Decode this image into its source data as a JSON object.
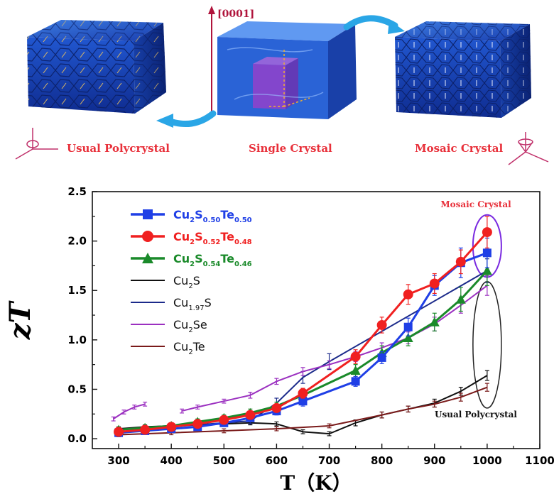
{
  "illustration": {
    "direction_label": "[0001]",
    "label_left": "Usual Polycrystal",
    "label_center": "Single Crystal",
    "label_right": "Mosaic Crystal",
    "label_color": "#e8303a",
    "crystal_color": "#1e4fc2",
    "arrow_color": "#2aa6e6"
  },
  "chart_data": {
    "type": "line",
    "xlabel": "T（K）",
    "ylabel": "zT",
    "xlim": [
      250,
      1100
    ],
    "ylim": [
      -0.1,
      2.5
    ],
    "xticks": [
      "300",
      "400",
      "500",
      "600",
      "700",
      "800",
      "900",
      "1000",
      "1100"
    ],
    "yticks": [
      "0.0",
      "0.5",
      "1.0",
      "1.5",
      "2.0",
      "2.5"
    ],
    "legend_position": "top-left",
    "annotations": [
      "Mosaic Crystal",
      "Usual Polycrystal"
    ],
    "series": [
      {
        "name": "Cu2S0.50Te0.50",
        "legend": {
          "base": "Cu",
          "s1": "2",
          "mid": "S",
          "s2": "0.50",
          "tail": "Te",
          "s3": "0.50"
        },
        "color": "#1f3fe6",
        "marker": "square",
        "bold": true,
        "x": [
          300,
          350,
          400,
          450,
          500,
          550,
          600,
          650,
          750,
          800,
          850,
          900,
          950,
          1000
        ],
        "y": [
          0.06,
          0.08,
          0.1,
          0.12,
          0.16,
          0.21,
          0.28,
          0.38,
          0.58,
          0.82,
          1.13,
          1.55,
          1.78,
          1.88
        ],
        "err": [
          0.02,
          0.02,
          0.02,
          0.03,
          0.03,
          0.03,
          0.04,
          0.05,
          0.05,
          0.06,
          0.09,
          0.1,
          0.15,
          0.15
        ]
      },
      {
        "name": "Cu2S0.52Te0.48",
        "legend": {
          "base": "Cu",
          "s1": "2",
          "mid": "S",
          "s2": "0.52",
          "tail": "Te",
          "s3": "0.48"
        },
        "color": "#f02020",
        "marker": "circle",
        "bold": true,
        "x": [
          300,
          350,
          400,
          450,
          500,
          550,
          600,
          650,
          750,
          800,
          850,
          900,
          950,
          1000
        ],
        "y": [
          0.07,
          0.09,
          0.12,
          0.15,
          0.19,
          0.24,
          0.31,
          0.46,
          0.83,
          1.15,
          1.46,
          1.57,
          1.79,
          2.09
        ],
        "err": [
          0.02,
          0.02,
          0.03,
          0.03,
          0.03,
          0.04,
          0.04,
          0.05,
          0.07,
          0.08,
          0.1,
          0.1,
          0.12,
          0.16
        ]
      },
      {
        "name": "Cu2S0.54Te0.46",
        "legend": {
          "base": "Cu",
          "s1": "2",
          "mid": "S",
          "s2": "0.54",
          "tail": "Te",
          "s3": "0.46"
        },
        "color": "#1a8a2a",
        "marker": "triangle",
        "bold": true,
        "x": [
          300,
          350,
          400,
          450,
          500,
          550,
          600,
          650,
          750,
          800,
          850,
          900,
          950,
          1000
        ],
        "y": [
          0.09,
          0.11,
          0.13,
          0.17,
          0.21,
          0.26,
          0.33,
          0.44,
          0.69,
          0.87,
          1.02,
          1.18,
          1.41,
          1.7
        ],
        "err": [
          0.02,
          0.02,
          0.03,
          0.03,
          0.03,
          0.04,
          0.04,
          0.05,
          0.06,
          0.07,
          0.08,
          0.09,
          0.12,
          0.15
        ]
      },
      {
        "name": "Cu2S",
        "legend": {
          "base": "Cu",
          "s1": "2",
          "mid": "S",
          "s2": "",
          "tail": "",
          "s3": ""
        },
        "color": "#111111",
        "marker": "none",
        "bold": false,
        "x": [
          300,
          350,
          400,
          450,
          500,
          550,
          600,
          650,
          700,
          750,
          800,
          850,
          900,
          950,
          1000
        ],
        "y": [
          0.1,
          0.12,
          0.13,
          0.14,
          0.15,
          0.16,
          0.15,
          0.07,
          0.05,
          0.16,
          0.24,
          0.3,
          0.36,
          0.48,
          0.64
        ],
        "err": [
          0.02,
          0.02,
          0.02,
          0.02,
          0.02,
          0.02,
          0.02,
          0.02,
          0.02,
          0.03,
          0.03,
          0.03,
          0.04,
          0.04,
          0.05
        ]
      },
      {
        "name": "Cu1.97S",
        "legend": {
          "base": "Cu",
          "s1": "1.97",
          "mid": "S",
          "s2": "",
          "tail": "",
          "s3": ""
        },
        "color": "#1b2a8a",
        "marker": "none",
        "bold": false,
        "x": [
          300,
          400,
          500,
          550,
          600,
          650,
          700,
          1000
        ],
        "y": [
          0.07,
          0.12,
          0.16,
          0.18,
          0.36,
          0.62,
          0.78,
          1.7
        ],
        "err": [
          0.02,
          0.02,
          0.03,
          0.03,
          0.05,
          0.06,
          0.08,
          0.12
        ]
      },
      {
        "name": "Cu2Se",
        "legend": {
          "base": "Cu",
          "s1": "2",
          "mid": "Se",
          "s2": "",
          "tail": "",
          "s3": ""
        },
        "color": "#9b30c0",
        "marker": "none",
        "bold": false,
        "segments": [
          {
            "x": [
              290,
              310,
              330,
              350
            ],
            "y": [
              0.2,
              0.27,
              0.32,
              0.35
            ],
            "err": [
              0.02,
              0.02,
              0.02,
              0.02
            ]
          },
          {
            "x": [
              420,
              450,
              500,
              550,
              600,
              650,
              700,
              750,
              800,
              850,
              900,
              950,
              1000
            ],
            "y": [
              0.28,
              0.32,
              0.38,
              0.44,
              0.58,
              0.68,
              0.75,
              0.83,
              0.92,
              1.02,
              1.16,
              1.35,
              1.55
            ],
            "err": [
              0.02,
              0.02,
              0.02,
              0.03,
              0.03,
              0.04,
              0.04,
              0.05,
              0.05,
              0.06,
              0.07,
              0.08,
              0.1
            ]
          }
        ]
      },
      {
        "name": "Cu2Te",
        "legend": {
          "base": "Cu",
          "s1": "2",
          "mid": "Te",
          "s2": "",
          "tail": "",
          "s3": ""
        },
        "color": "#7a1a1a",
        "marker": "none",
        "bold": false,
        "x": [
          300,
          400,
          500,
          600,
          700,
          800,
          850,
          900,
          950,
          1000
        ],
        "y": [
          0.04,
          0.06,
          0.08,
          0.1,
          0.13,
          0.24,
          0.3,
          0.35,
          0.42,
          0.52
        ],
        "err": [
          0.02,
          0.02,
          0.02,
          0.02,
          0.02,
          0.03,
          0.03,
          0.03,
          0.04,
          0.04
        ]
      }
    ],
    "highlight": {
      "mosaic_color": "#7a2ae0",
      "poly_color": "#222222"
    }
  }
}
